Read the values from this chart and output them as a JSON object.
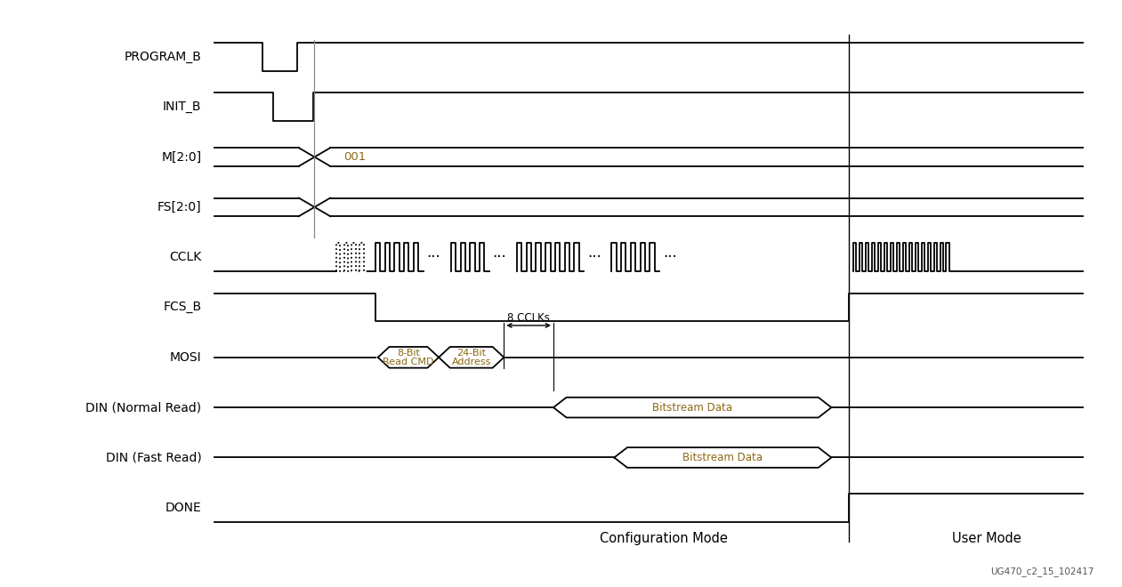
{
  "signals": [
    "PROGRAM_B",
    "INIT_B",
    "M[2:0]",
    "FS[2:0]",
    "CCLK",
    "FCS_B",
    "MOSI",
    "DIN (Normal Read)",
    "DIN (Fast Read)",
    "DONE"
  ],
  "bg_color": "#ffffff",
  "line_color": "#000000",
  "label_color": "#000000",
  "annotation_color": "#8B6914",
  "signal_font_size": 10,
  "figsize": [
    12.61,
    6.6
  ],
  "dpi": 100,
  "footer": "UG470_c2_15_102417",
  "config_mode_label": "Configuration Mode",
  "user_mode_label": "User Mode"
}
